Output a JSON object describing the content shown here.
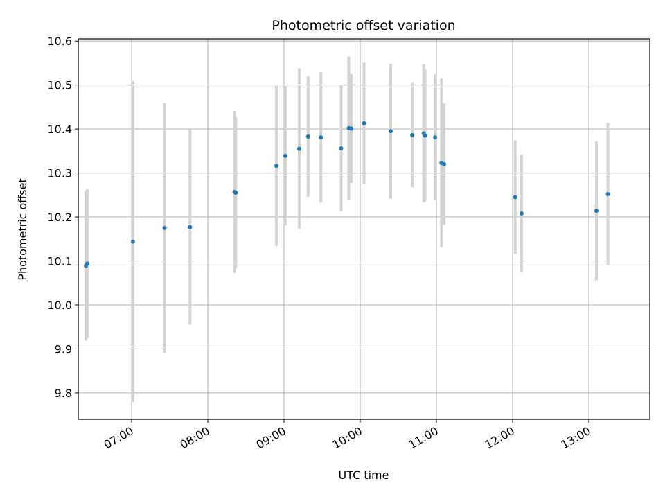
{
  "chart_data": {
    "type": "scatter",
    "title": "Photometric offset variation",
    "xlabel": "UTC time",
    "ylabel": "Photometric offset",
    "x_ticks": [
      "07:00",
      "08:00",
      "09:00",
      "10:00",
      "11:00",
      "12:00",
      "13:00"
    ],
    "y_ticks": [
      "9.8",
      "9.9",
      "10.0",
      "10.1",
      "10.2",
      "10.3",
      "10.4",
      "10.5",
      "10.6"
    ],
    "xlim": [
      "06:18",
      "13:48"
    ],
    "ylim": [
      9.74,
      10.605
    ],
    "grid": true,
    "colors": {
      "points": "#1f77b4",
      "errorbars": "#d3d3d3",
      "grid": "#b0b0b0"
    },
    "series": [
      {
        "points": [
          {
            "x": "06:24",
            "y": 10.089,
            "err": 0.17
          },
          {
            "x": "06:25",
            "y": 10.094,
            "err": 0.17
          },
          {
            "x": "07:01",
            "y": 10.144,
            "err": 0.365
          },
          {
            "x": "07:26",
            "y": 10.175,
            "err": 0.284
          },
          {
            "x": "07:46",
            "y": 10.177,
            "err": 0.222
          },
          {
            "x": "08:21",
            "y": 10.257,
            "err": 0.184
          },
          {
            "x": "08:22",
            "y": 10.255,
            "err": 0.172
          },
          {
            "x": "08:54",
            "y": 10.316,
            "err": 0.182
          },
          {
            "x": "09:01",
            "y": 10.339,
            "err": 0.158
          },
          {
            "x": "09:12",
            "y": 10.355,
            "err": 0.182
          },
          {
            "x": "09:19",
            "y": 10.383,
            "err": 0.137
          },
          {
            "x": "09:29",
            "y": 10.381,
            "err": 0.148
          },
          {
            "x": "09:45",
            "y": 10.356,
            "err": 0.143
          },
          {
            "x": "09:51",
            "y": 10.402,
            "err": 0.163
          },
          {
            "x": "09:53",
            "y": 10.401,
            "err": 0.124
          },
          {
            "x": "10:03",
            "y": 10.413,
            "err": 0.138
          },
          {
            "x": "10:24",
            "y": 10.395,
            "err": 0.153
          },
          {
            "x": "10:41",
            "y": 10.386,
            "err": 0.119
          },
          {
            "x": "10:50",
            "y": 10.39,
            "err": 0.157
          },
          {
            "x": "10:51",
            "y": 10.385,
            "err": 0.15
          },
          {
            "x": "10:59",
            "y": 10.381,
            "err": 0.143
          },
          {
            "x": "11:04",
            "y": 10.323,
            "err": 0.192
          },
          {
            "x": "11:06",
            "y": 10.32,
            "err": 0.138
          },
          {
            "x": "12:02",
            "y": 10.245,
            "err": 0.129
          },
          {
            "x": "12:07",
            "y": 10.208,
            "err": 0.133
          },
          {
            "x": "13:06",
            "y": 10.214,
            "err": 0.158
          },
          {
            "x": "13:15",
            "y": 10.252,
            "err": 0.162
          }
        ]
      }
    ]
  }
}
